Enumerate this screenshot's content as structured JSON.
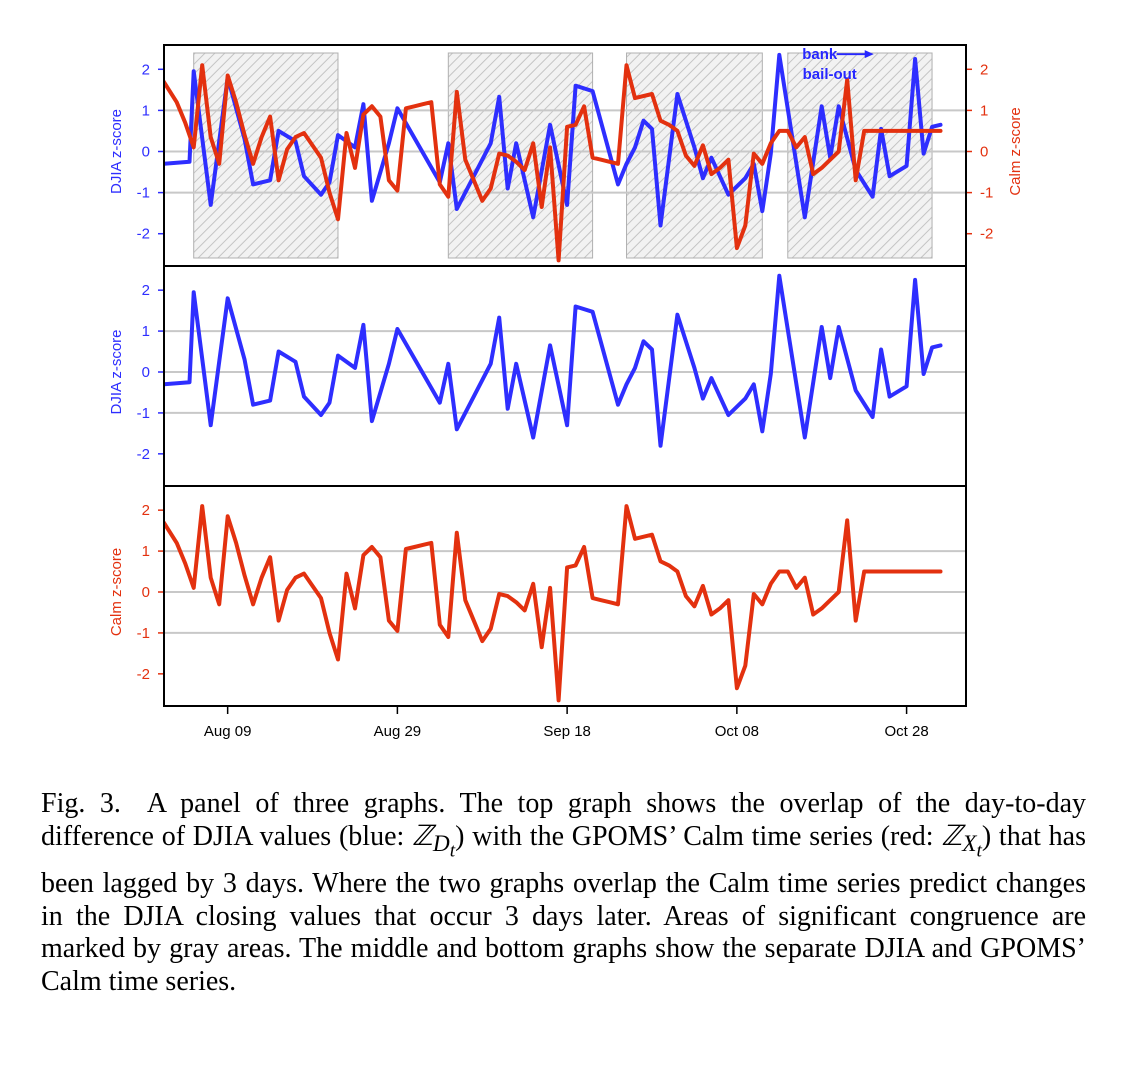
{
  "chart_data": [
    {
      "panel": "top",
      "type": "line",
      "ylabel_left": "DJIA z-score",
      "ylabel_right": "Calm z-score",
      "ylim": [
        -2.5,
        2.5
      ],
      "yticks": [
        -2,
        -1,
        0,
        1,
        2
      ],
      "ytick_labels": [
        "-2",
        "-1",
        "0",
        "1",
        "2"
      ],
      "grid_y": [
        -1,
        0,
        1
      ],
      "xlim": [
        -7.5,
        87
      ],
      "shaded_regions": [
        [
          -4,
          13
        ],
        [
          26,
          43
        ],
        [
          47,
          63
        ],
        [
          66,
          83
        ]
      ],
      "annotation": {
        "lines": [
          "bank",
          "bail-out"
        ],
        "x": 70,
        "y": 2.1,
        "color": "#2727ff"
      },
      "series": [
        {
          "ref": "djia",
          "color": "#2e2eff",
          "axis": "left"
        },
        {
          "ref": "calm",
          "color": "#e3310f",
          "axis": "right"
        }
      ]
    },
    {
      "panel": "middle",
      "type": "line",
      "ylabel": "DJIA z-score",
      "ylim": [
        -2.5,
        2.5
      ],
      "yticks": [
        -2,
        -1,
        0,
        1,
        2
      ],
      "ytick_labels": [
        "-2",
        "-1",
        "0",
        "1",
        "2"
      ],
      "grid_y": [
        -1,
        0,
        1
      ],
      "xlim": [
        -7.5,
        87
      ],
      "series": [
        {
          "ref": "djia",
          "color": "#2e2eff"
        }
      ]
    },
    {
      "panel": "bottom",
      "type": "line",
      "ylabel": "Calm z-score",
      "ylim": [
        -2.5,
        2.5
      ],
      "yticks": [
        -2,
        -1,
        0,
        1,
        2
      ],
      "ytick_labels": [
        "-2",
        "-1",
        "0",
        "1",
        "2"
      ],
      "grid_y": [
        -1,
        0,
        1
      ],
      "xlim": [
        -7.5,
        87
      ],
      "xticks": [
        0,
        20,
        40,
        60,
        80
      ],
      "xtick_labels": [
        "Aug 09",
        "Aug 29",
        "Sep 18",
        "Oct 08",
        "Oct 28"
      ],
      "series": [
        {
          "ref": "calm",
          "color": "#e3310f"
        }
      ]
    }
  ],
  "series_values": {
    "djia": {
      "x": [
        -8,
        -7.5,
        -4.5,
        -4,
        -2,
        0,
        2,
        3,
        5,
        6,
        8,
        9,
        11,
        12,
        13,
        15,
        16,
        17,
        19,
        20,
        25,
        26,
        27,
        31,
        32,
        33,
        34,
        36,
        38,
        40,
        41,
        43,
        46,
        47,
        48,
        49,
        50,
        51,
        53,
        55,
        56,
        57,
        59,
        61,
        62,
        63,
        64,
        65,
        68,
        70,
        71,
        72,
        74,
        76,
        77,
        78,
        80,
        81,
        82,
        83,
        84
      ],
      "y": [
        -0.3,
        -0.3,
        -0.25,
        1.95,
        -1.3,
        1.8,
        0.3,
        -0.8,
        -0.7,
        0.5,
        0.25,
        -0.6,
        -1.05,
        -0.75,
        0.4,
        0.1,
        1.15,
        -1.2,
        0.2,
        1.05,
        -0.75,
        0.2,
        -1.4,
        0.2,
        1.33,
        -0.9,
        0.2,
        -1.6,
        0.65,
        -1.3,
        1.6,
        1.47,
        -0.8,
        -0.3,
        0.1,
        0.75,
        0.55,
        -1.8,
        1.4,
        0.1,
        -0.65,
        -0.15,
        -1.05,
        -0.65,
        -0.3,
        -1.45,
        -0.05,
        2.35,
        -1.6,
        1.1,
        -0.15,
        1.1,
        -0.45,
        -1.1,
        0.55,
        -0.6,
        -0.35,
        2.25,
        -0.05,
        0.6,
        0.65
      ]
    },
    "calm": {
      "x": [
        -8,
        -6,
        -5,
        -4,
        -3,
        -2,
        -1,
        0,
        1,
        2,
        3,
        4,
        5,
        6,
        7,
        8,
        9,
        11,
        12,
        13,
        14,
        15,
        16,
        17,
        18,
        19,
        20,
        21,
        22,
        23,
        24,
        25,
        26,
        27,
        28,
        30,
        31,
        32,
        33,
        34,
        35,
        36,
        37,
        38,
        39,
        40,
        41,
        42,
        43,
        44,
        45,
        46,
        47,
        48,
        50,
        51,
        52,
        53,
        54,
        55,
        56,
        57,
        58,
        59,
        60,
        61,
        62,
        63,
        64,
        65,
        66,
        67,
        68,
        69,
        70,
        71,
        72,
        73,
        74,
        75,
        76,
        77,
        78,
        79,
        80,
        81,
        82,
        83,
        84
      ],
      "y": [
        1.85,
        1.2,
        0.7,
        0.1,
        2.1,
        0.35,
        -0.3,
        1.85,
        1.2,
        0.4,
        -0.3,
        0.35,
        0.85,
        -0.7,
        0.05,
        0.35,
        0.45,
        -0.15,
        -1.0,
        -1.65,
        0.45,
        -0.4,
        0.9,
        1.1,
        0.85,
        -0.7,
        -0.95,
        1.05,
        1.1,
        1.15,
        1.2,
        -0.8,
        -1.1,
        1.45,
        -0.2,
        -1.2,
        -0.9,
        -0.05,
        -0.1,
        -0.25,
        -0.45,
        0.2,
        -1.35,
        0.1,
        -2.65,
        0.6,
        0.65,
        1.1,
        -0.15,
        -0.2,
        -0.25,
        -0.3,
        2.1,
        1.3,
        1.4,
        0.75,
        0.65,
        0.5,
        -0.1,
        -0.35,
        0.15,
        -0.55,
        -0.4,
        -0.2,
        -2.35,
        -1.8,
        -0.05,
        -0.3,
        0.2,
        0.5,
        0.5,
        0.1,
        0.35,
        -0.55,
        -0.4,
        -0.2,
        0.0,
        1.75,
        -0.7,
        0.5,
        0.5,
        0.5,
        0.5,
        0.5,
        0.5,
        0.5,
        0.5,
        0.5,
        0.5
      ]
    }
  },
  "caption": {
    "label": "Fig. 3.",
    "part1": "A panel of three graphs. The top graph shows the overlap of the day-to-day difference of DJIA values (blue: ",
    "sym1": "ℤ",
    "sub1": "D",
    "subsub1": "t",
    "part2": ") with the GPOMS’ Calm time series (red: ",
    "sym2": "ℤ",
    "sub2": "X",
    "subsub2": "t",
    "part3": ") that has been lagged by 3 days. Where the two graphs overlap the Calm time series predict changes in the DJIA closing values that occur 3 days later. Areas of significant congruence are marked by gray areas. The middle and bottom graphs show the separate DJIA and GPOMS’ Calm time series."
  }
}
